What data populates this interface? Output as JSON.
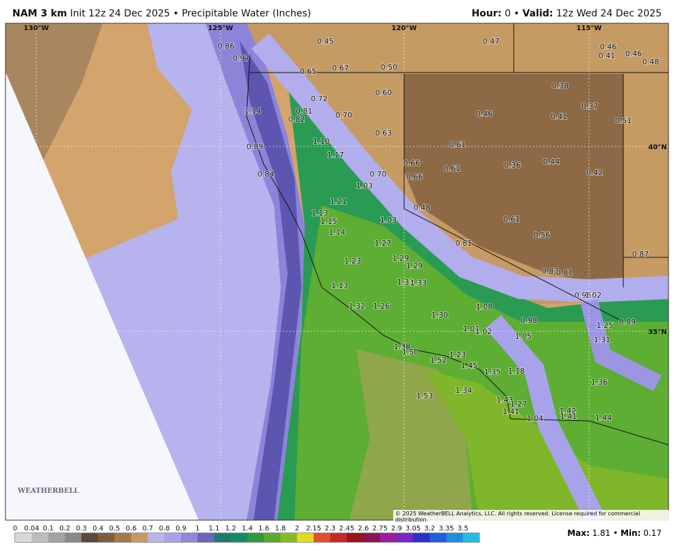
{
  "header": {
    "model": "NAM 3 km",
    "title_rest": "Init 12z 24 Dec 2025 • Precipitable Water (Inches)",
    "hour_label": "Hour:",
    "hour_rest": "0 •",
    "valid_label": "Valid:",
    "valid_rest": "12z Wed 24 Dec 2025"
  },
  "map": {
    "grid_labels": [
      "130°W",
      "125°W",
      "120°W",
      "115°W",
      "40°N",
      "35°N"
    ],
    "point_values": [
      "0.86",
      "0.97",
      "0.45",
      "0.47",
      "0.46",
      "0.41",
      "0.46",
      "0.48",
      "0.65",
      "0.67",
      "0.50",
      "0.60",
      "0.38",
      "0.72",
      "0.37",
      "1.14",
      "0.81",
      "0.82",
      "0.70",
      "0.46",
      "0.41",
      "0.51",
      "0.63",
      "1.10",
      "0.89",
      "0.61",
      "1.17",
      "0.66",
      "0.36",
      "0.44",
      "0.61",
      "0.42",
      "0.84",
      "0.70",
      "0.66",
      "1.03",
      "1.21",
      "0.48",
      "1.13",
      "1.15",
      "1.03",
      "0.61",
      "1.14",
      "0.56",
      "1.27",
      "0.81",
      "0.87",
      "1.29",
      "1.29",
      "1.23",
      "0.83",
      "0.81",
      "1.13",
      "1.33",
      "1.33",
      "0.96",
      "1.02",
      "1.32",
      "1.26",
      "1.08",
      "1.30",
      "0.98",
      "0.89",
      "1.25",
      "1.01",
      "1.02",
      "1.05",
      "1.31",
      "1.38",
      "1.50",
      "1.23",
      "1.52",
      "1.45",
      "1.35",
      "1.18",
      "1.36",
      "1.34",
      "1.53",
      "1.43",
      "1.27",
      "1.42",
      "1.41",
      "1.41",
      "1.04",
      "1.44"
    ],
    "copyright": "© 2025 WeatherBELL Analytics, LLC. All rights reserved. License required for commercial distribution.",
    "logo": "WEATHERBELL"
  },
  "colorbar": {
    "labels": [
      "0",
      "0.04",
      "0.1",
      "0.2",
      "0.3",
      "0.4",
      "0.5",
      "0.6",
      "0.7",
      "0.8",
      "0.9",
      "1",
      "1.1",
      "1.2",
      "1.4",
      "1.6",
      "1.8",
      "2",
      "2.15",
      "2.3",
      "2.45",
      "2.6",
      "2.75",
      "2.9",
      "3.05",
      "3.2",
      "3.35",
      "3.5"
    ],
    "colors": [
      "#d8d8d8",
      "#bdbdbd",
      "#a3a3a3",
      "#8a8a8a",
      "#5e4a36",
      "#7d5f3f",
      "#a27a4c",
      "#c9995f",
      "#b9b4ec",
      "#a7a2ea",
      "#8f88dc",
      "#6b63bd",
      "#1f7a6e",
      "#128c62",
      "#2f9a3c",
      "#5aab2c",
      "#88bb22",
      "#e5dd18",
      "#e0502c",
      "#c92a25",
      "#9a1420",
      "#8a1553",
      "#a01c9e",
      "#7a27c3",
      "#2d2fcf",
      "#1f5fe0",
      "#1d8fe0",
      "#21bde6"
    ]
  },
  "footer": {
    "max_label": "Max:",
    "max_value": "1.81 •",
    "min_label": "Min:",
    "min_value": "0.17"
  }
}
